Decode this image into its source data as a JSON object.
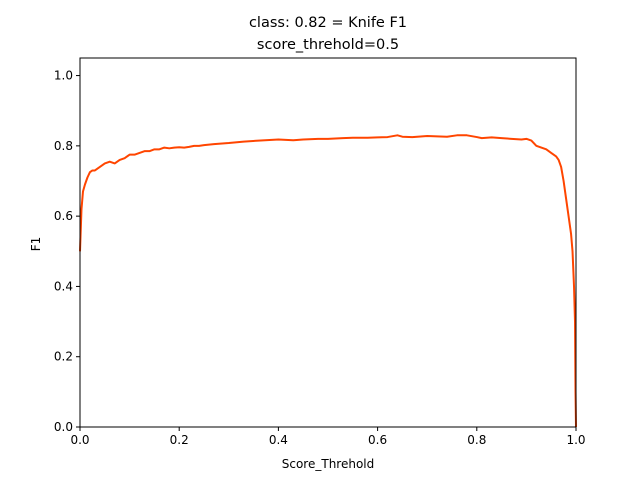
{
  "chart_data": {
    "type": "line",
    "title": "class: 0.82 = Knife F1",
    "subtitle": "score_threhold=0.5",
    "xlabel": "Score_Threhold",
    "ylabel": "F1",
    "xlim": [
      0,
      1
    ],
    "ylim": [
      0,
      1.05
    ],
    "xticks": [
      "0.0",
      "0.2",
      "0.4",
      "0.6",
      "0.8",
      "1.0"
    ],
    "yticks": [
      "0.0",
      "0.2",
      "0.4",
      "0.6",
      "0.8",
      "1.0"
    ],
    "grid": false,
    "series": [
      {
        "color": "#ff4500",
        "x": [
          0.0,
          0.003,
          0.006,
          0.01,
          0.015,
          0.02,
          0.025,
          0.03,
          0.04,
          0.05,
          0.06,
          0.07,
          0.08,
          0.09,
          0.1,
          0.11,
          0.12,
          0.13,
          0.14,
          0.15,
          0.16,
          0.17,
          0.18,
          0.19,
          0.2,
          0.21,
          0.22,
          0.23,
          0.24,
          0.25,
          0.27,
          0.3,
          0.33,
          0.36,
          0.4,
          0.43,
          0.45,
          0.48,
          0.5,
          0.53,
          0.55,
          0.58,
          0.6,
          0.62,
          0.64,
          0.65,
          0.67,
          0.7,
          0.72,
          0.74,
          0.76,
          0.78,
          0.8,
          0.81,
          0.83,
          0.85,
          0.87,
          0.89,
          0.9,
          0.91,
          0.92,
          0.93,
          0.94,
          0.95,
          0.96,
          0.965,
          0.97,
          0.975,
          0.98,
          0.985,
          0.99,
          0.993,
          0.996,
          0.998,
          0.999,
          1.0
        ],
        "y": [
          0.5,
          0.62,
          0.67,
          0.69,
          0.71,
          0.725,
          0.73,
          0.73,
          0.74,
          0.75,
          0.755,
          0.75,
          0.76,
          0.765,
          0.775,
          0.775,
          0.78,
          0.785,
          0.785,
          0.79,
          0.79,
          0.795,
          0.793,
          0.795,
          0.796,
          0.795,
          0.797,
          0.8,
          0.8,
          0.802,
          0.805,
          0.808,
          0.812,
          0.815,
          0.818,
          0.816,
          0.818,
          0.82,
          0.82,
          0.822,
          0.823,
          0.823,
          0.824,
          0.825,
          0.83,
          0.826,
          0.825,
          0.828,
          0.827,
          0.826,
          0.83,
          0.83,
          0.825,
          0.822,
          0.824,
          0.822,
          0.82,
          0.818,
          0.82,
          0.815,
          0.8,
          0.795,
          0.79,
          0.78,
          0.77,
          0.76,
          0.74,
          0.7,
          0.65,
          0.6,
          0.55,
          0.5,
          0.4,
          0.3,
          0.1,
          0.0
        ]
      }
    ]
  }
}
